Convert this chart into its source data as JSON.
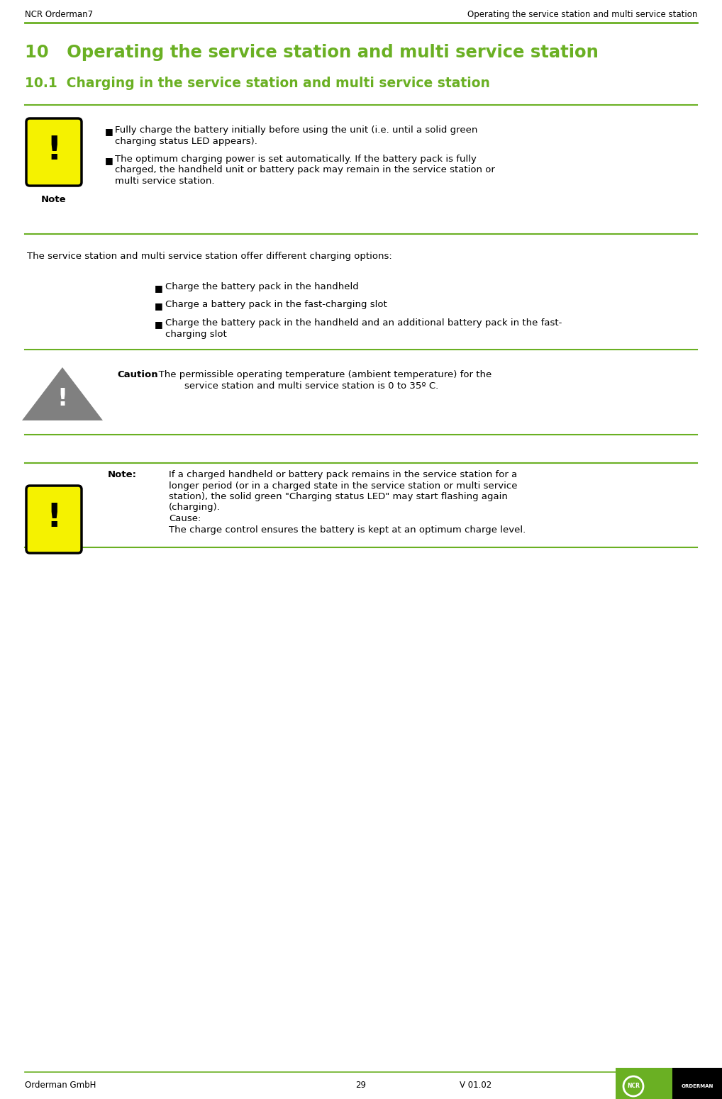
{
  "header_left": "NCR Orderman7",
  "header_right": "Operating the service station and multi service station",
  "green": "#6ab023",
  "black": "#000000",
  "white": "#ffffff",
  "yellow": "#f5f200",
  "gray": "#808080",
  "title_10": "10   Operating the service station and multi service station",
  "title_101": "10.1  Charging in the service station and multi service station",
  "note_label": "Note",
  "note1_bullet1_line1": "Fully charge the battery initially before using the unit (i.e. until a solid green",
  "note1_bullet1_line2": "charging status LED appears).",
  "note1_bullet2_line1": "The optimum charging power is set automatically. If the battery pack is fully",
  "note1_bullet2_line2": "charged, the handheld unit or battery pack may remain in the service station or",
  "note1_bullet2_line3": "multi service station.",
  "middle_para": "The service station and multi service station offer different charging options:",
  "mid_bullet1": "Charge the battery pack in the handheld",
  "mid_bullet2": "Charge a battery pack in the fast-charging slot",
  "mid_bullet3_l1": "Charge the battery pack in the handheld and an additional battery pack in the fast-",
  "mid_bullet3_l2": "charging slot",
  "caution_bold": "Caution",
  "caution_rest_l1": ": The permissible operating temperature (ambient temperature) for the",
  "caution_rest_l2": "service station and multi service station is 0 to 35º C.",
  "note2_label": "Note:",
  "note2_l1": "If a charged handheld or battery pack remains in the service station for a",
  "note2_l2": "longer period (or in a charged state in the service station or multi service",
  "note2_l3": "station), the solid green \"Charging status LED\" may start flashing again",
  "note2_l4": "(charging).",
  "note2_l5": "Cause:",
  "note2_l6": "The charge control ensures the battery is kept at an optimum charge level.",
  "footer_left": "Orderman GmbH",
  "footer_mid": "29",
  "footer_right": "V 01.02"
}
